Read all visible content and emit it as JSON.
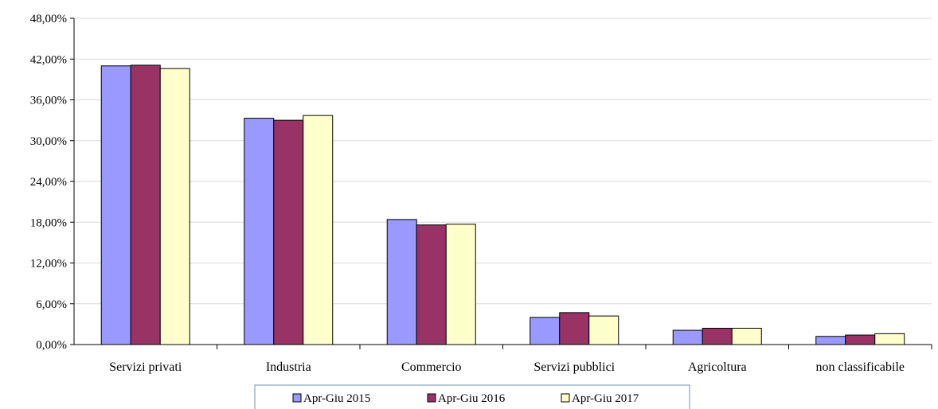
{
  "chart_data": {
    "type": "bar",
    "title": "",
    "xlabel": "",
    "ylabel": "",
    "ylim": [
      0,
      48
    ],
    "yticks": [
      0,
      6,
      12,
      18,
      24,
      30,
      36,
      42,
      48
    ],
    "ytick_labels": [
      "0,00%",
      "6,00%",
      "12,00%",
      "18,00%",
      "24,00%",
      "30,00%",
      "36,00%",
      "42,00%",
      "48,00%"
    ],
    "categories": [
      "Servizi privati",
      "Industria",
      "Commercio",
      "Servizi pubblici",
      "Agricoltura",
      "non classificabile"
    ],
    "series": [
      {
        "name": "Apr-Giu 2015",
        "color": "#9999ff",
        "values": [
          41.0,
          33.3,
          18.4,
          4.0,
          2.1,
          1.2
        ]
      },
      {
        "name": "Apr-Giu 2016",
        "color": "#993366",
        "values": [
          41.1,
          33.0,
          17.6,
          4.7,
          2.4,
          1.4
        ]
      },
      {
        "name": "Apr-Giu 2017",
        "color": "#ffffcc",
        "values": [
          40.6,
          33.7,
          17.7,
          4.2,
          2.4,
          1.6
        ]
      }
    ],
    "grid": true,
    "legend_position": "bottom"
  }
}
